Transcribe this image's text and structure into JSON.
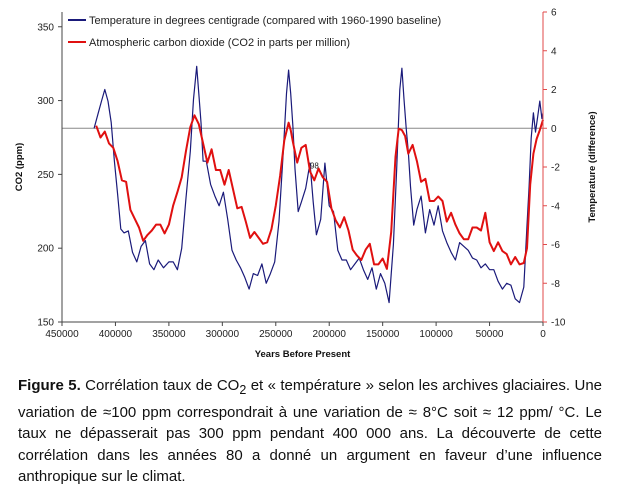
{
  "chart_data": {
    "type": "line",
    "xlabel": "Years Before Present",
    "ylabel": "CO2 (ppm)",
    "y2label": "Temperature (difference)",
    "xlim": [
      450000,
      0
    ],
    "ylim": [
      150,
      360
    ],
    "y2lim": [
      -10,
      6
    ],
    "x_ticks": [
      450000,
      400000,
      350000,
      300000,
      250000,
      200000,
      150000,
      100000,
      50000,
      0
    ],
    "y_ticks": [
      150,
      200,
      250,
      300,
      350
    ],
    "y2_ticks": [
      -10,
      -8,
      -6,
      -4,
      -2,
      0,
      2,
      4,
      6
    ],
    "baseline_temperature": 0,
    "annotation": "98",
    "annotation_x": 218000,
    "annotation_y": 254,
    "legend_position": "top-left",
    "series": [
      {
        "name": "Temperature in degrees centigrade (compared with 1960-1990 baseline)",
        "color": "#1a1a7a",
        "axis": "right",
        "x": [
          420000,
          416000,
          413000,
          410000,
          407000,
          404000,
          401000,
          398000,
          395000,
          392000,
          388000,
          384000,
          380000,
          376000,
          372000,
          368000,
          364000,
          360000,
          355000,
          350000,
          346000,
          342000,
          338000,
          334000,
          330000,
          327000,
          324000,
          322000,
          320000,
          318000,
          315000,
          311000,
          307000,
          303000,
          299000,
          295000,
          291000,
          287000,
          283000,
          279000,
          275000,
          271000,
          267000,
          263000,
          259000,
          255000,
          251000,
          247000,
          243000,
          240000,
          238000,
          236000,
          234000,
          232000,
          229000,
          226000,
          222000,
          218000,
          215000,
          212000,
          208000,
          204000,
          200000,
          196000,
          192000,
          188000,
          184000,
          180000,
          176000,
          172000,
          168000,
          164000,
          160000,
          156000,
          152000,
          148000,
          144000,
          140000,
          137000,
          134000,
          132000,
          130000,
          128000,
          126000,
          124000,
          121000,
          118000,
          114000,
          110000,
          106000,
          102000,
          98000,
          94000,
          90000,
          86000,
          82000,
          78000,
          74000,
          70000,
          66000,
          62000,
          58000,
          54000,
          50000,
          46000,
          42000,
          38000,
          34000,
          30000,
          26000,
          22000,
          18000,
          15000,
          13000,
          11000,
          9000,
          7000,
          5000,
          3000,
          1000,
          0
        ],
        "values": [
          0.0,
          0.8,
          1.4,
          2.0,
          1.4,
          0.3,
          -1.7,
          -3.4,
          -5.2,
          -5.4,
          -5.3,
          -6.4,
          -6.9,
          -6.1,
          -5.8,
          -7.0,
          -7.3,
          -6.8,
          -7.2,
          -6.9,
          -6.9,
          -7.3,
          -6.2,
          -3.6,
          -1.2,
          1.5,
          3.2,
          1.8,
          0.3,
          -1.7,
          -1.7,
          -2.9,
          -3.5,
          -4.0,
          -3.3,
          -4.7,
          -6.3,
          -6.8,
          -7.2,
          -7.7,
          -8.3,
          -7.5,
          -7.6,
          -7.0,
          -8.0,
          -7.5,
          -6.9,
          -4.8,
          -1.2,
          1.8,
          3.0,
          1.8,
          0.1,
          -2.1,
          -4.3,
          -3.8,
          -3.1,
          -1.8,
          -3.8,
          -5.5,
          -4.7,
          -1.8,
          -4.0,
          -4.3,
          -6.3,
          -6.8,
          -6.8,
          -7.3,
          -7.0,
          -6.7,
          -7.3,
          -7.8,
          -7.2,
          -8.3,
          -7.5,
          -8.0,
          -9.0,
          -6.0,
          -2.2,
          2.0,
          3.1,
          1.5,
          0.0,
          -1.2,
          -3.0,
          -5.0,
          -4.2,
          -3.5,
          -5.4,
          -4.2,
          -5.0,
          -4.0,
          -5.3,
          -5.9,
          -6.4,
          -6.8,
          -5.9,
          -6.1,
          -6.3,
          -6.7,
          -6.8,
          -7.2,
          -7.0,
          -7.3,
          -7.3,
          -7.9,
          -8.3,
          -8.0,
          -8.1,
          -8.8,
          -9.0,
          -8.2,
          -5.0,
          -3.0,
          -0.5,
          0.8,
          -0.2,
          0.6,
          1.4,
          0.5,
          0.8
        ]
      },
      {
        "name": "Atmospheric carbon dioxide (CO2 in parts per million)",
        "color": "#e01010",
        "axis": "left",
        "x": [
          418000,
          414000,
          410000,
          406000,
          402000,
          398000,
          394000,
          390000,
          386000,
          382000,
          378000,
          374000,
          370000,
          366000,
          362000,
          358000,
          354000,
          350000,
          346000,
          342000,
          338000,
          334000,
          330000,
          326000,
          322000,
          318000,
          314000,
          310000,
          306000,
          302000,
          298000,
          294000,
          290000,
          286000,
          282000,
          278000,
          274000,
          270000,
          266000,
          262000,
          258000,
          254000,
          250000,
          246000,
          242000,
          238000,
          236000,
          234000,
          230000,
          226000,
          222000,
          218000,
          214000,
          210000,
          206000,
          202000,
          198000,
          194000,
          190000,
          186000,
          182000,
          178000,
          174000,
          170000,
          166000,
          162000,
          158000,
          154000,
          150000,
          146000,
          142000,
          138000,
          135000,
          132000,
          129000,
          126000,
          122000,
          118000,
          114000,
          110000,
          106000,
          102000,
          98000,
          94000,
          90000,
          86000,
          82000,
          78000,
          74000,
          70000,
          66000,
          62000,
          58000,
          54000,
          50000,
          46000,
          42000,
          38000,
          34000,
          30000,
          26000,
          22000,
          18000,
          15000,
          12000,
          9000,
          6000,
          3000,
          0
        ],
        "values": [
          283,
          275,
          279,
          271,
          268,
          259,
          246,
          245,
          226,
          220,
          214,
          205,
          209,
          212,
          216,
          216,
          210,
          216,
          229,
          238,
          248,
          266,
          282,
          290,
          284,
          271,
          258,
          267,
          253,
          253,
          243,
          253,
          240,
          227,
          228,
          218,
          207,
          211,
          207,
          203,
          204,
          213,
          229,
          249,
          273,
          285,
          280,
          272,
          258,
          268,
          270,
          252,
          246,
          254,
          248,
          245,
          227,
          219,
          214,
          221,
          212,
          199,
          195,
          192,
          199,
          203,
          189,
          189,
          193,
          186,
          211,
          262,
          281,
          280,
          276,
          264,
          270,
          259,
          245,
          247,
          232,
          232,
          235,
          232,
          218,
          224,
          216,
          210,
          206,
          206,
          214,
          214,
          212,
          224,
          204,
          198,
          204,
          198,
          196,
          189,
          194,
          189,
          190,
          200,
          243,
          264,
          274,
          280,
          287
        ]
      }
    ]
  },
  "caption": {
    "figure_label": "Figure 5.",
    "text_before_sub": " Corrélation taux de CO",
    "subscript": "2",
    "text_after_sub": " et « température » selon les archives glaciaires. Une variation de ≈100 ppm correspondrait à une variation de ≈ 8°C soit ≈ 12 ppm/ °C. Le taux ne dépasserait pas 300 ppm pendant 400 000 ans. La découverte de cette corrélation dans les années 80 a donné un argument en faveur d’une influence anthropique sur le climat."
  }
}
